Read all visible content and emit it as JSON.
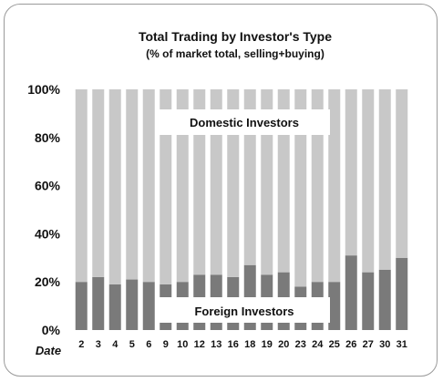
{
  "chart_data": {
    "type": "bar",
    "stacked": true,
    "title": "Total Trading by Investor's Type",
    "subtitle": "(% of market total, selling+buying)",
    "xlabel": "Date",
    "ylabel": "",
    "ylim": [
      0,
      100
    ],
    "y_tick_labels": [
      "0%",
      "20%",
      "40%",
      "60%",
      "80%",
      "100%"
    ],
    "categories": [
      "2",
      "3",
      "4",
      "5",
      "6",
      "9",
      "10",
      "12",
      "13",
      "16",
      "18",
      "19",
      "20",
      "23",
      "24",
      "25",
      "26",
      "27",
      "30",
      "31"
    ],
    "series": [
      {
        "name": "Foreign Investors",
        "values": [
          20,
          22,
          19,
          21,
          20,
          19,
          20,
          23,
          23,
          22,
          27,
          23,
          24,
          18,
          20,
          20,
          31,
          24,
          25,
          30
        ],
        "color": "#7a7a7a"
      },
      {
        "name": "Domestic Investors",
        "values": [
          80,
          78,
          81,
          79,
          80,
          81,
          80,
          77,
          77,
          78,
          73,
          77,
          76,
          82,
          80,
          80,
          69,
          76,
          75,
          70
        ],
        "color": "#c8c8c8"
      }
    ],
    "grid": false,
    "legend": "inline labels"
  }
}
